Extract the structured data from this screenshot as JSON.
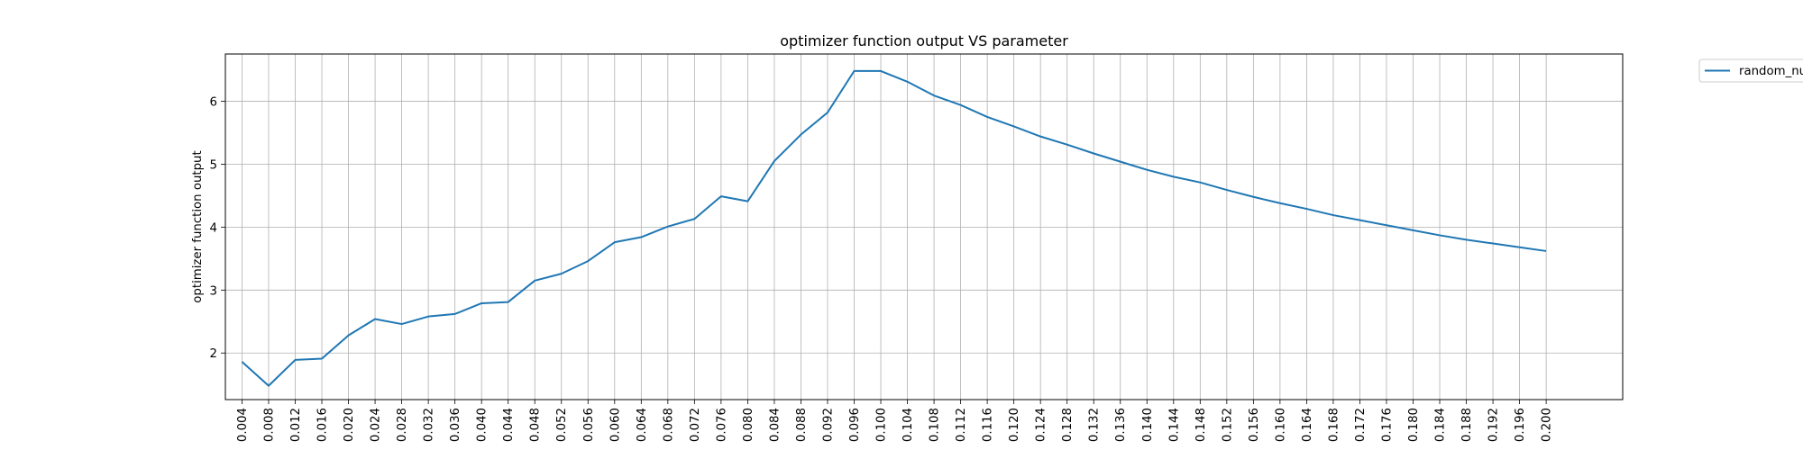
{
  "chart_data": {
    "type": "line",
    "title": "optimizer function output VS parameter",
    "xlabel": "",
    "ylabel": "optimizer function output",
    "x": [
      0.004,
      0.008,
      0.012,
      0.016,
      0.02,
      0.024,
      0.028,
      0.032,
      0.036,
      0.04,
      0.044,
      0.048,
      0.052,
      0.056,
      0.06,
      0.064,
      0.068,
      0.072,
      0.076,
      0.08,
      0.084,
      0.088,
      0.092,
      0.096,
      0.1,
      0.104,
      0.108,
      0.112,
      0.116,
      0.12,
      0.124,
      0.128,
      0.132,
      0.136,
      0.14,
      0.144,
      0.148,
      0.152,
      0.156,
      0.16,
      0.164,
      0.168,
      0.172,
      0.176,
      0.18,
      0.184,
      0.188,
      0.192,
      0.196,
      0.2
    ],
    "x_tick_labels": [
      "0.004",
      "0.008",
      "0.012",
      "0.016",
      "0.020",
      "0.024",
      "0.028",
      "0.032",
      "0.036",
      "0.040",
      "0.044",
      "0.048",
      "0.052",
      "0.056",
      "0.060",
      "0.064",
      "0.068",
      "0.072",
      "0.076",
      "0.080",
      "0.084",
      "0.088",
      "0.092",
      "0.096",
      "0.100",
      "0.104",
      "0.108",
      "0.112",
      "0.116",
      "0.120",
      "0.124",
      "0.128",
      "0.132",
      "0.136",
      "0.140",
      "0.144",
      "0.148",
      "0.152",
      "0.156",
      "0.160",
      "0.164",
      "0.168",
      "0.172",
      "0.176",
      "0.180",
      "0.184",
      "0.188",
      "0.192",
      "0.196",
      "0.200"
    ],
    "y_ticks": [
      2,
      3,
      4,
      5,
      6
    ],
    "y_tick_labels": [
      "2",
      "3",
      "4",
      "5",
      "6"
    ],
    "xlim": [
      0.0015,
      0.2115
    ],
    "ylim": [
      1.26,
      6.75
    ],
    "grid": true,
    "legend_placement": "outside-top-right",
    "series": [
      {
        "name": "random_nu",
        "color": "#1f77b4",
        "values": [
          1.86,
          1.48,
          1.89,
          1.91,
          2.28,
          2.54,
          2.46,
          2.58,
          2.62,
          2.79,
          2.81,
          3.15,
          3.26,
          3.46,
          3.76,
          3.84,
          4.01,
          4.13,
          4.49,
          4.41,
          5.05,
          5.47,
          5.82,
          6.48,
          6.48,
          6.31,
          6.09,
          5.94,
          5.75,
          5.6,
          5.44,
          5.31,
          5.17,
          5.04,
          4.91,
          4.8,
          4.71,
          4.59,
          4.48,
          4.38,
          4.29,
          4.19,
          4.11,
          4.03,
          3.95,
          3.87,
          3.8,
          3.74,
          3.68,
          3.62
        ]
      }
    ]
  }
}
